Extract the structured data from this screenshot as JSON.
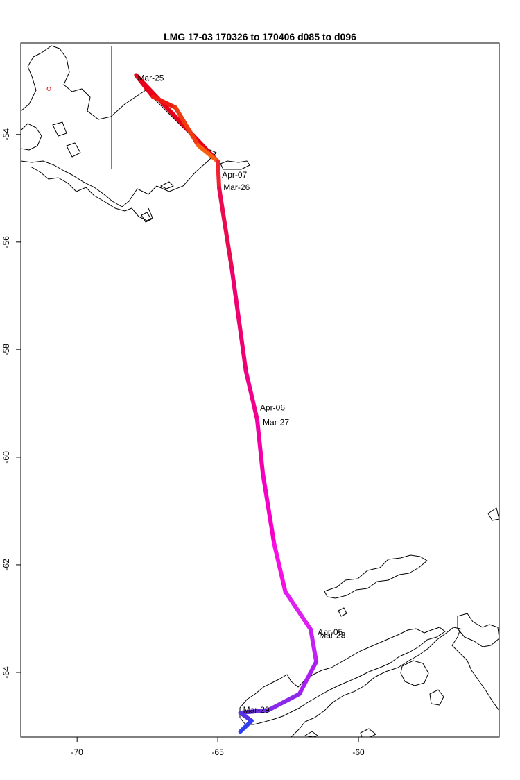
{
  "title": "LMG   17-03    170326 to 170406    d085 to d096",
  "map": {
    "lon_range": [
      -72,
      -55
    ],
    "lat_range": [
      -65.2,
      -52.3
    ],
    "x_ticks": [
      {
        "value": -70,
        "label": "-70"
      },
      {
        "value": -65,
        "label": "-65"
      },
      {
        "value": -60,
        "label": "-60"
      }
    ],
    "y_ticks": [
      {
        "value": -54,
        "label": "-54"
      },
      {
        "value": -56,
        "label": "-56"
      },
      {
        "value": -58,
        "label": "-58"
      },
      {
        "value": -60,
        "label": "-60"
      },
      {
        "value": -62,
        "label": "-62"
      },
      {
        "value": -64,
        "label": "-64"
      }
    ],
    "track": [
      {
        "lon": -67.9,
        "lat": -52.9,
        "color": "#e8001a"
      },
      {
        "lon": -67.3,
        "lat": -53.3,
        "color": "#ee1a10"
      },
      {
        "lon": -66.5,
        "lat": -53.5,
        "color": "#f03a10"
      },
      {
        "lon": -65.7,
        "lat": -54.2,
        "color": "#f66010"
      },
      {
        "lon": -65.0,
        "lat": -54.5,
        "color": "#ef2430"
      },
      {
        "lon": -64.95,
        "lat": -55.0,
        "color": "#ea0a50"
      },
      {
        "lon": -64.5,
        "lat": -56.5,
        "color": "#ee0070"
      },
      {
        "lon": -64.0,
        "lat": -58.4,
        "color": "#f0008a"
      },
      {
        "lon": -63.6,
        "lat": -59.3,
        "color": "#f200a8"
      },
      {
        "lon": -63.4,
        "lat": -60.3,
        "color": "#f600c8"
      },
      {
        "lon": -63.0,
        "lat": -61.6,
        "color": "#f610e4"
      },
      {
        "lon": -62.6,
        "lat": -62.5,
        "color": "#e020f0"
      },
      {
        "lon": -61.7,
        "lat": -63.2,
        "color": "#c620f4"
      },
      {
        "lon": -61.5,
        "lat": -63.8,
        "color": "#a820f0"
      },
      {
        "lon": -62.1,
        "lat": -64.4,
        "color": "#8c28ea"
      },
      {
        "lon": -63.2,
        "lat": -64.7,
        "color": "#7030e8"
      },
      {
        "lon": -64.2,
        "lat": -64.75,
        "color": "#5830e8"
      },
      {
        "lon": -63.8,
        "lat": -64.9,
        "color": "#3040f0"
      },
      {
        "lon": -64.2,
        "lat": -65.1,
        "color": "#1040f0"
      }
    ],
    "return_track": [
      {
        "lon": -67.9,
        "lat": -52.9
      },
      {
        "lon": -65.0,
        "lat": -54.5
      }
    ],
    "start_marker": {
      "lon": -71.0,
      "lat": -53.15,
      "color": "#e00000"
    },
    "date_labels": [
      {
        "text": "Mar-25",
        "lon": -67.85,
        "lat": -52.95
      },
      {
        "text": "Apr-07",
        "lon": -64.85,
        "lat": -54.75
      },
      {
        "text": "Mar-26",
        "lon": -64.8,
        "lat": -54.98
      },
      {
        "text": "Apr-06",
        "lon": -63.5,
        "lat": -59.08
      },
      {
        "text": "Mar-27",
        "lon": -63.4,
        "lat": -59.35
      },
      {
        "text": "Apr-05",
        "lon": -61.45,
        "lat": -63.25
      },
      {
        "text": "Mar-28",
        "lon": -61.4,
        "lat": -63.31
      },
      {
        "text": "Mar-29",
        "lon": -64.1,
        "lat": -64.7
      }
    ]
  }
}
